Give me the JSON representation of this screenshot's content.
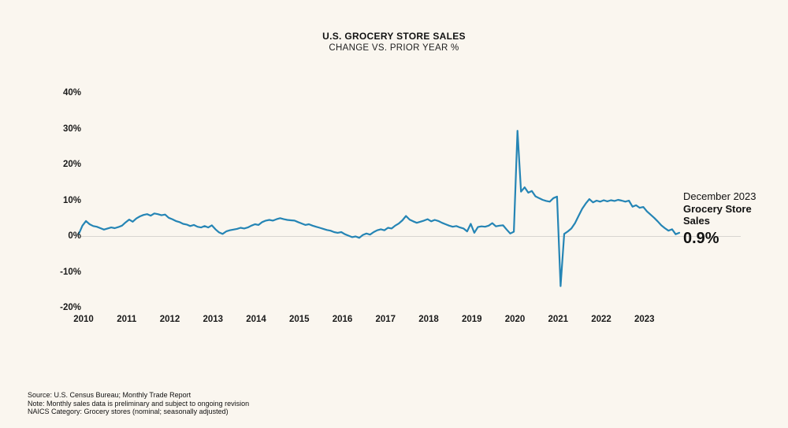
{
  "title": "U.S. GROCERY STORE SALES",
  "subtitle": "CHANGE VS. PRIOR YEAR %",
  "colors": {
    "background": "#faf6ef",
    "line": "#2585b5",
    "zero_gridline": "#d8d5d0",
    "text": "#1a1a1a"
  },
  "chart_data": {
    "type": "line",
    "title": "U.S. GROCERY STORE SALES",
    "subtitle": "CHANGE VS. PRIOR YEAR %",
    "unit": "percent change vs. prior year",
    "frequency": "monthly",
    "x_start": "2010-01",
    "x_end": "2023-12",
    "x_ticks": [
      "2010",
      "2011",
      "2012",
      "2013",
      "2014",
      "2015",
      "2016",
      "2017",
      "2018",
      "2019",
      "2020",
      "2021",
      "2022",
      "2023"
    ],
    "y_ticks": [
      "40%",
      "30%",
      "20%",
      "10%",
      "0%",
      "-10%",
      "-20%"
    ],
    "y_tick_values": [
      40,
      30,
      20,
      10,
      0,
      -10,
      -20
    ],
    "ylim": [
      -20,
      40
    ],
    "grid": "zero-line-only",
    "legend_position": "none",
    "notable_points": {
      "2020-03_spike": 29.4,
      "2021-03_dip": -14.0,
      "2023-12_final": 0.9
    },
    "series": [
      {
        "name": "Grocery Store Sales YoY %",
        "values": [
          0.6,
          2.9,
          4.2,
          3.3,
          2.8,
          2.6,
          2.2,
          1.8,
          2.1,
          2.4,
          2.2,
          2.5,
          2.9,
          3.8,
          4.6,
          4.0,
          4.9,
          5.5,
          5.9,
          6.1,
          5.7,
          6.3,
          6.1,
          5.8,
          6.0,
          5.1,
          4.7,
          4.2,
          3.9,
          3.4,
          3.2,
          2.8,
          3.1,
          2.6,
          2.4,
          2.8,
          2.4,
          3.0,
          1.9,
          1.0,
          0.6,
          1.3,
          1.6,
          1.8,
          2.0,
          2.3,
          2.1,
          2.4,
          2.9,
          3.3,
          3.1,
          3.9,
          4.3,
          4.5,
          4.3,
          4.7,
          5.0,
          4.7,
          4.5,
          4.4,
          4.3,
          3.9,
          3.5,
          3.1,
          3.3,
          2.9,
          2.6,
          2.3,
          2.0,
          1.7,
          1.5,
          1.1,
          0.9,
          1.1,
          0.5,
          0.1,
          -0.3,
          -0.1,
          -0.5,
          0.3,
          0.7,
          0.4,
          1.1,
          1.6,
          1.9,
          1.6,
          2.3,
          2.1,
          2.9,
          3.5,
          4.4,
          5.6,
          4.6,
          4.1,
          3.7,
          4.0,
          4.3,
          4.7,
          4.1,
          4.5,
          4.2,
          3.7,
          3.3,
          2.9,
          2.6,
          2.8,
          2.4,
          2.1,
          1.3,
          3.4,
          0.9,
          2.5,
          2.7,
          2.6,
          2.9,
          3.6,
          2.7,
          2.9,
          3.0,
          1.8,
          0.7,
          1.2,
          29.4,
          12.4,
          13.6,
          12.1,
          12.6,
          11.1,
          10.6,
          10.1,
          9.8,
          9.6,
          10.6,
          11.0,
          -14.0,
          0.6,
          1.3,
          2.1,
          3.6,
          5.6,
          7.6,
          9.1,
          10.3,
          9.4,
          9.9,
          9.6,
          10.0,
          9.7,
          10.0,
          9.8,
          10.1,
          9.9,
          9.6,
          9.9,
          8.2,
          8.6,
          7.9,
          8.1,
          6.9,
          6.0,
          5.1,
          4.1,
          3.0,
          2.2,
          1.5,
          1.9,
          0.5,
          0.9
        ]
      }
    ]
  },
  "annotation": {
    "date_label": "December 2023",
    "series_label_line1": "Grocery Store",
    "series_label_line2": "Sales",
    "value": "0.9%"
  },
  "footnotes": {
    "source": "Source: U.S. Census Bureau; Monthly Trade Report",
    "note": "Note: Monthly sales data is preliminary and subject to ongoing revision",
    "naics": "NAICS Category: Grocery stores (nominal; seasonally adjusted)"
  }
}
